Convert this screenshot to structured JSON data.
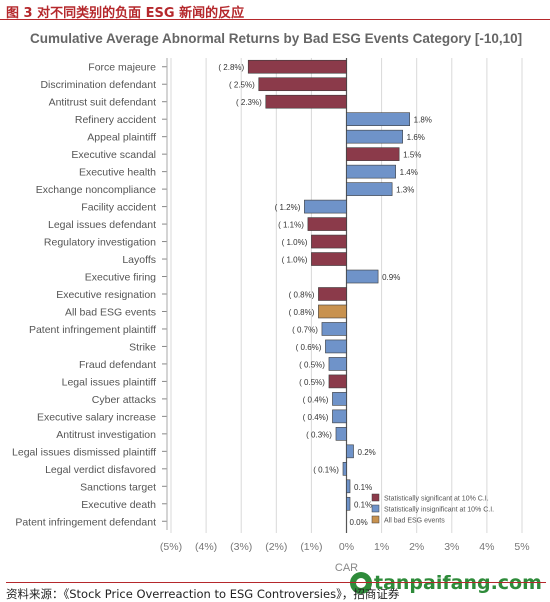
{
  "figure_caption": "图 3 对不同类别的负面 ESG 新闻的反应",
  "source_note": "资料来源：《Stock Price Overreaction to ESG Controversies》，招商证券",
  "watermark": "tanpaifang.com",
  "colors": {
    "significant": "#8b3a4a",
    "insignificant": "#6f93c9",
    "all_events": "#c8924f",
    "caption": "#b5282c"
  },
  "chart_data": {
    "type": "bar",
    "orientation": "horizontal",
    "title": "Cumulative Average Abnormal Returns by Bad ESG Events Category [-10,10]",
    "xlabel": "CAR",
    "ylabel": "",
    "xlim": [
      -5,
      5
    ],
    "x_ticks": [
      -5,
      -4,
      -3,
      -2,
      -1,
      0,
      1,
      2,
      3,
      4,
      5
    ],
    "x_tick_labels": [
      "(5%)",
      "(4%)",
      "(3%)",
      "(2%)",
      "(1%)",
      "0%",
      "1%",
      "2%",
      "3%",
      "4%",
      "5%"
    ],
    "grid": true,
    "legend_position": "bottom-right",
    "legend": [
      {
        "key": "significant",
        "label": "Statistically significant at 10% C.I."
      },
      {
        "key": "insignificant",
        "label": "Statistically insignificant at 10% C.I."
      },
      {
        "key": "all",
        "label": "All bad ESG events"
      }
    ],
    "categories": [
      "Force majeure",
      "Discrimination defendant",
      "Antitrust suit defendant",
      "Refinery accident",
      "Appeal plaintiff",
      "Executive scandal",
      "Executive health",
      "Exchange noncompliance",
      "Facility accident",
      "Legal issues defendant",
      "Regulatory investigation",
      "Layoffs",
      "Executive firing",
      "Executive resignation",
      "All bad ESG events",
      "Patent infringement plaintiff",
      "Strike",
      "Fraud defendant",
      "Legal issues plaintiff",
      "Cyber attacks",
      "Executive salary increase",
      "Antitrust investigation",
      "Legal issues dismissed plaintiff",
      "Legal verdict disfavored",
      "Sanctions target",
      "Executive death",
      "Patent infringement defendant"
    ],
    "values": [
      -2.8,
      -2.5,
      -2.3,
      1.8,
      1.6,
      1.5,
      1.4,
      1.3,
      -1.2,
      -1.1,
      -1.0,
      -1.0,
      0.9,
      -0.8,
      -0.8,
      -0.7,
      -0.6,
      -0.5,
      -0.5,
      -0.4,
      -0.4,
      -0.3,
      0.2,
      -0.1,
      0.1,
      0.1,
      0.0
    ],
    "value_labels": [
      "( 2.8%)",
      "( 2.5%)",
      "( 2.3%)",
      "1.8%",
      "1.6%",
      "1.5%",
      "1.4%",
      "1.3%",
      "( 1.2%)",
      "( 1.1%)",
      "( 1.0%)",
      "( 1.0%)",
      "0.9%",
      "( 0.8%)",
      "( 0.8%)",
      "( 0.7%)",
      "( 0.6%)",
      "( 0.5%)",
      "( 0.5%)",
      "( 0.4%)",
      "( 0.4%)",
      "( 0.3%)",
      "0.2%",
      "( 0.1%)",
      "0.1%",
      "0.1%",
      "0.0%"
    ],
    "significance": [
      "significant",
      "significant",
      "significant",
      "insignificant",
      "insignificant",
      "significant",
      "insignificant",
      "insignificant",
      "insignificant",
      "significant",
      "significant",
      "significant",
      "insignificant",
      "significant",
      "all",
      "insignificant",
      "insignificant",
      "insignificant",
      "significant",
      "insignificant",
      "insignificant",
      "insignificant",
      "insignificant",
      "insignificant",
      "insignificant",
      "insignificant",
      "insignificant"
    ]
  }
}
